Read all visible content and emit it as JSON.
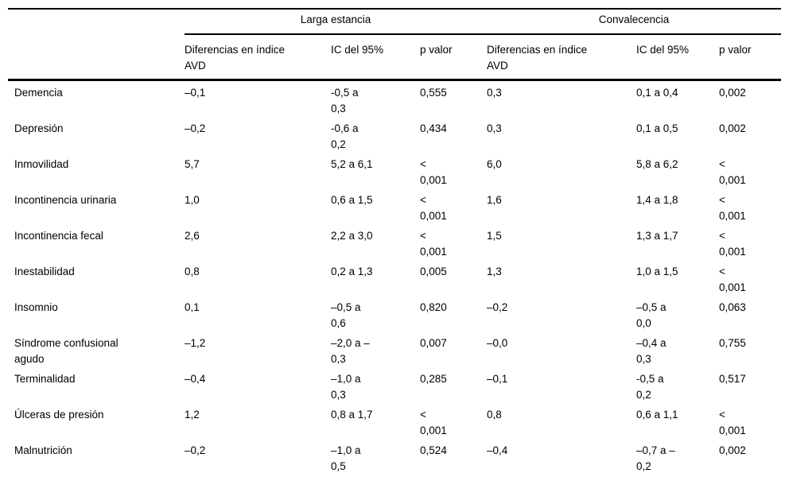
{
  "table": {
    "groups": [
      "Larga estancia",
      "Convalecencia"
    ],
    "column_headers": [
      "Diferencias en índice\nAVD",
      "IC del 95%",
      "p valor",
      "Diferencias en índice\nAVD",
      "IC del 95%",
      "p valor"
    ],
    "rows": [
      {
        "label": "Demencia",
        "cells": [
          "–0,1",
          "-0,5 a\n0,3",
          "0,555",
          "0,3",
          "0,1 a 0,4",
          "0,002"
        ]
      },
      {
        "label": "Depresión",
        "cells": [
          "–0,2",
          "-0,6 a\n0,2",
          "0,434",
          "0,3",
          "0,1 a 0,5",
          "0,002"
        ]
      },
      {
        "label": "Inmovilidad",
        "cells": [
          "5,7",
          "5,2 a 6,1",
          "<\n0,001",
          "6,0",
          "5,8 a 6,2",
          "<\n0,001"
        ]
      },
      {
        "label": "Incontinencia urinaria",
        "cells": [
          "1,0",
          "0,6 a 1,5",
          "<\n0,001",
          "1,6",
          "1,4 a 1,8",
          "<\n0,001"
        ]
      },
      {
        "label": "Incontinencia fecal",
        "cells": [
          "2,6",
          "2,2 a 3,0",
          "<\n0,001",
          "1,5",
          "1,3 a 1,7",
          "<\n0,001"
        ]
      },
      {
        "label": "Inestabilidad",
        "cells": [
          "0,8",
          "0,2 a 1,3",
          "0,005",
          "1,3",
          "1,0 a 1,5",
          "<\n0,001"
        ]
      },
      {
        "label": "Insomnio",
        "cells": [
          "0,1",
          "–0,5 a\n0,6",
          "0,820",
          "–0,2",
          "–0,5 a\n0,0",
          "0,063"
        ]
      },
      {
        "label": "Síndrome confusional\nagudo",
        "cells": [
          "–1,2",
          "–2,0 a –\n0,3",
          "0,007",
          "–0,0",
          "–0,4 a\n0,3",
          "0,755"
        ]
      },
      {
        "label": "Terminalidad",
        "cells": [
          "–0,4",
          "–1,0 a\n0,3",
          "0,285",
          "–0,1",
          "-0,5 a\n0,2",
          "0,517"
        ]
      },
      {
        "label": "Úlceras de presión",
        "cells": [
          "1,2",
          "0,8 a 1,7",
          "<\n0,001",
          "0,8",
          "0,6 a 1,1",
          "<\n0,001"
        ]
      },
      {
        "label": "Malnutrición",
        "cells": [
          "–0,2",
          "–1,0 a\n0,5",
          "0,524",
          "–0,4",
          "–0,7 a –\n0,2",
          "0,002"
        ]
      }
    ]
  }
}
